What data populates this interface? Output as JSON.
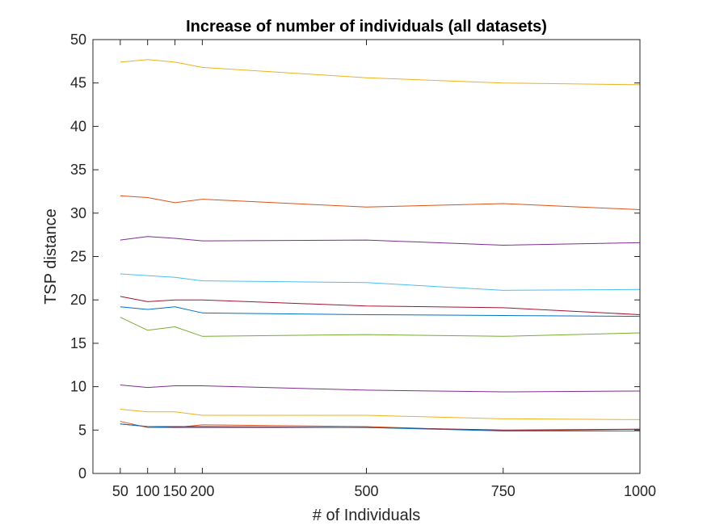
{
  "chart_data": {
    "type": "line",
    "title": "Increase of number of individuals (all datasets)",
    "xlabel": "# of Individuals",
    "ylabel": "TSP distance",
    "x": [
      50,
      100,
      150,
      200,
      500,
      750,
      1000
    ],
    "x_tick_labels": [
      "50",
      "100",
      "150",
      "200",
      "500",
      "750",
      "1000"
    ],
    "y_ticks": [
      0,
      5,
      10,
      15,
      20,
      25,
      30,
      35,
      40,
      45,
      50
    ],
    "xlim": [
      0,
      1000
    ],
    "ylim": [
      0,
      50
    ],
    "grid": false,
    "box": true,
    "legend": "none",
    "series": [
      {
        "color": "#EDB120",
        "values": [
          47.4,
          47.7,
          47.4,
          46.8,
          45.6,
          45.0,
          44.8
        ]
      },
      {
        "color": "#D95319",
        "values": [
          32.0,
          31.8,
          31.2,
          31.6,
          30.7,
          31.1,
          30.4
        ]
      },
      {
        "color": "#7E2F8E",
        "values": [
          26.9,
          27.3,
          27.1,
          26.8,
          26.9,
          26.3,
          26.6
        ]
      },
      {
        "color": "#4DBEEE",
        "values": [
          23.0,
          22.8,
          22.6,
          22.2,
          22.0,
          21.1,
          21.2
        ]
      },
      {
        "color": "#A2142F",
        "values": [
          20.4,
          19.8,
          20.0,
          20.0,
          19.3,
          19.1,
          18.3
        ]
      },
      {
        "color": "#0072BD",
        "values": [
          19.2,
          18.9,
          19.2,
          18.5,
          18.3,
          18.2,
          18.1
        ]
      },
      {
        "color": "#77AC30",
        "values": [
          18.0,
          16.5,
          16.9,
          15.8,
          16.0,
          15.8,
          16.2
        ]
      },
      {
        "color": "#7E2F8E",
        "values": [
          10.2,
          9.9,
          10.1,
          10.1,
          9.6,
          9.4,
          9.5
        ]
      },
      {
        "color": "#EDB120",
        "values": [
          7.4,
          7.1,
          7.1,
          6.7,
          6.7,
          6.3,
          6.2
        ]
      },
      {
        "color": "#D95319",
        "values": [
          6.0,
          5.3,
          5.3,
          5.6,
          5.4,
          4.9,
          5.1
        ]
      },
      {
        "color": "#A2142F",
        "values": [
          5.7,
          5.4,
          5.4,
          5.4,
          5.3,
          5.0,
          5.1
        ]
      },
      {
        "color": "#0072BD",
        "values": [
          5.7,
          5.4,
          5.3,
          5.3,
          5.3,
          4.9,
          4.9
        ]
      }
    ]
  }
}
